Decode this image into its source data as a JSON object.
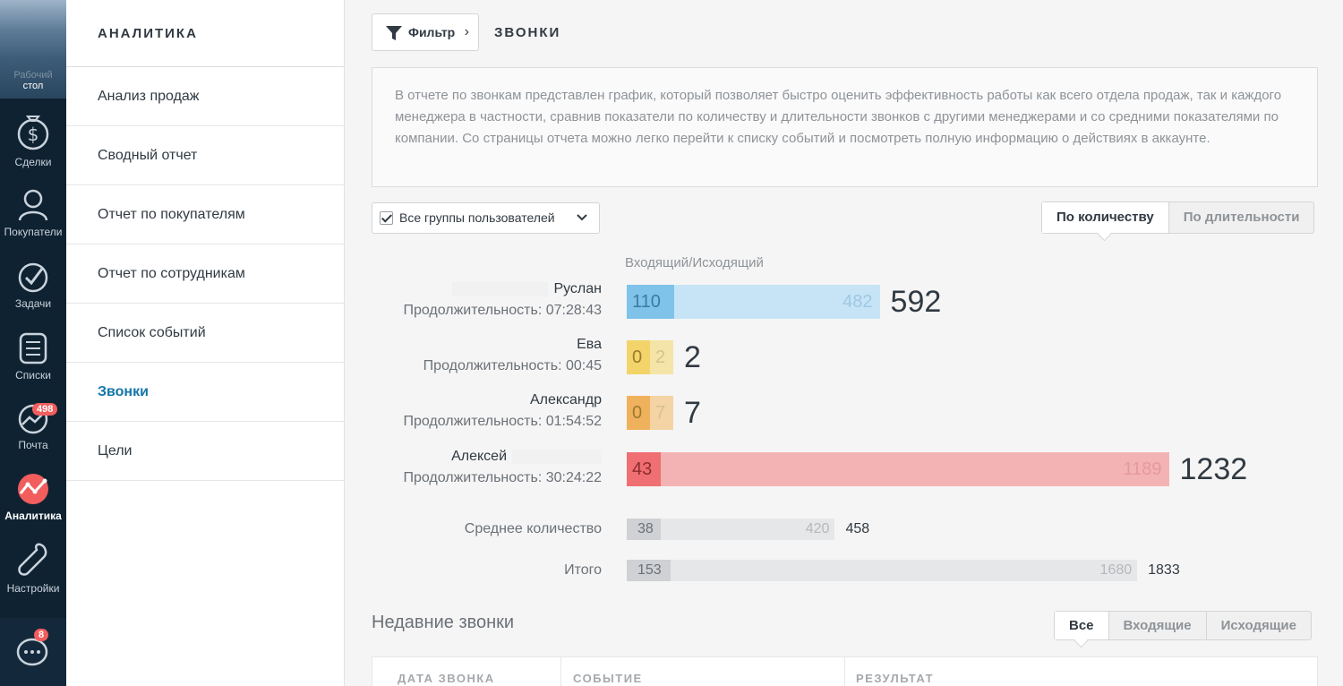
{
  "rail": {
    "desktop_label": "стол",
    "desktop_ghost": "Рабочий",
    "items": [
      {
        "label": "Сделки",
        "icon": "dollar-icon"
      },
      {
        "label": "Покупатели",
        "icon": "contacts-icon"
      },
      {
        "label": "Задачи",
        "icon": "tasks-check-icon"
      },
      {
        "label": "Списки",
        "icon": "lists-icon"
      },
      {
        "label": "Почта",
        "icon": "mail-chart-icon",
        "badge": "498"
      },
      {
        "label": "Аналитика",
        "icon": "analytics-icon"
      },
      {
        "label": "Настройки",
        "icon": "wrench-icon"
      }
    ],
    "chat_badge": "8"
  },
  "sidebar": {
    "title": "АНАЛИТИКА",
    "items": [
      {
        "label": "Анализ продаж"
      },
      {
        "label": "Сводный отчет"
      },
      {
        "label": "Отчет по покупателям"
      },
      {
        "label": "Отчет по сотрудникам"
      },
      {
        "label": "Список событий"
      },
      {
        "label": "Звонки"
      },
      {
        "label": "Цели"
      }
    ]
  },
  "header": {
    "filter_label": "Фильтр",
    "title": "ЗВОНКИ"
  },
  "description": "В отчете по звонкам представлен график, который позволяет быстро оценить эффективность работы как всего отдела продаж, так и каждого менеджера в частности, сравнив показатели по количеству и длительности звонков с другими менеджерами и со средними показателями по компании. Со страницы отчета можно легко перейти к списку событий и посмотреть полную информацию о действиях в аккаунте.",
  "groups_select": "Все группы пользователей",
  "view_toggle": {
    "by_count": "По количеству",
    "by_duration": "По длительности"
  },
  "chart_data": {
    "type": "bar",
    "caption": "Входящий/Исходящий",
    "rows": [
      {
        "name": "Руслан",
        "duration": "Продолжительность: 07:28:43",
        "incoming": 110,
        "outgoing": 482,
        "total": 592,
        "in_color": "#7fc3ea",
        "out_color": "#c6e4f6"
      },
      {
        "name": "Ева",
        "duration": "Продолжительность: 00:45",
        "incoming": 0,
        "outgoing": 2,
        "total": 2,
        "in_color": "#f2d46a",
        "out_color": "#f5e4a7"
      },
      {
        "name": "Александр",
        "duration": "Продолжительность: 01:54:52",
        "incoming": 0,
        "outgoing": 7,
        "total": 7,
        "in_color": "#f0b15c",
        "out_color": "#f4d3a4"
      },
      {
        "name": "Алексей",
        "duration": "Продолжительность: 30:24:22",
        "incoming": 43,
        "outgoing": 1189,
        "total": 1232,
        "in_color": "#ef6f72",
        "out_color": "#f3b3b4"
      }
    ],
    "summary": [
      {
        "label": "Среднее количество",
        "incoming": 38,
        "outgoing": 420,
        "total": 458
      },
      {
        "label": "Итого",
        "incoming": 153,
        "outgoing": 1680,
        "total": 1833
      }
    ]
  },
  "recent": {
    "title": "Недавние звонки",
    "tabs": [
      "Все",
      "Входящие",
      "Исходящие"
    ],
    "columns": [
      "ДАТА ЗВОНКА",
      "СОБЫТИЕ",
      "РЕЗУЛЬТАТ"
    ]
  }
}
